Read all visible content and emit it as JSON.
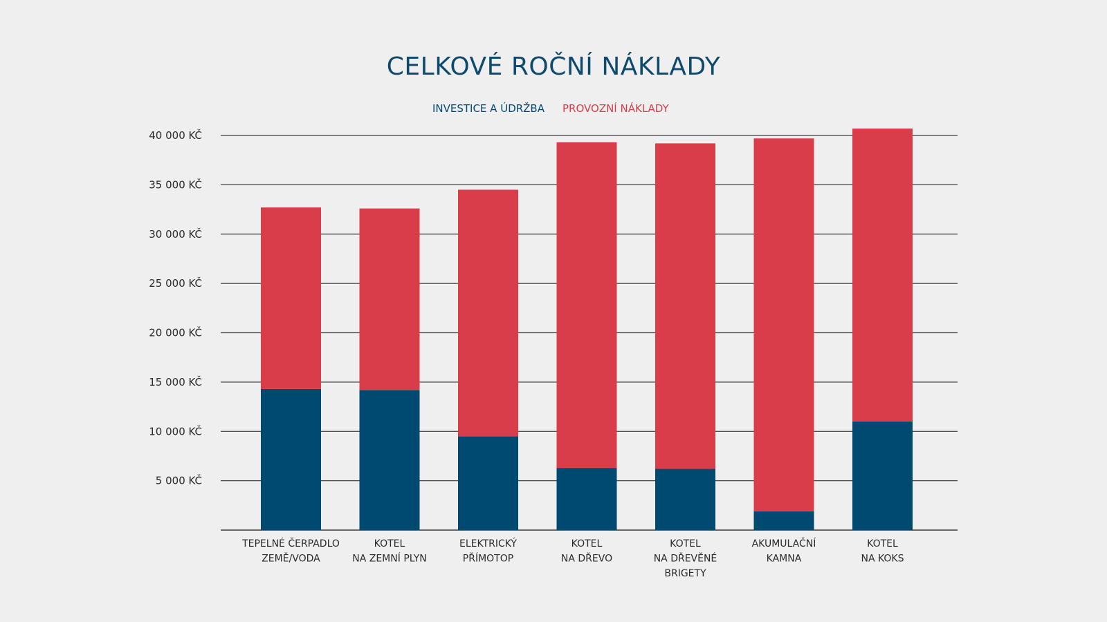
{
  "chart_data": {
    "type": "bar",
    "stacked": true,
    "title": "CELKOVÉ ROČNÍ NÁKLADY",
    "categories": [
      [
        "TEPELNÉ ČERPADLO",
        "ZEMĚ/VODA"
      ],
      [
        "KOTEL",
        "NA ZEMNÍ PLYN"
      ],
      [
        "ELEKTRICKÝ",
        "PŘÍMOTOP"
      ],
      [
        "KOTEL",
        "NA DŘEVO"
      ],
      [
        "KOTEL",
        "NA DŘEVĚNÉ",
        "BRIGETY"
      ],
      [
        "AKUMULAČNÍ",
        "KAMNA"
      ],
      [
        "KOTEL",
        "NA KOKS"
      ]
    ],
    "series": [
      {
        "name": "INVESTICE A ÚDRŽBA",
        "color": "#004a72",
        "values": [
          14300,
          14200,
          9500,
          6300,
          6200,
          1900,
          11000
        ]
      },
      {
        "name": "PROVOZNÍ NÁKLADY",
        "color": "#d93d4a",
        "values": [
          18400,
          18400,
          25000,
          33000,
          33000,
          37800,
          29700
        ]
      }
    ],
    "yticks": [
      {
        "value": 5000,
        "label": "5 000 KČ"
      },
      {
        "value": 10000,
        "label": "10 000 KČ"
      },
      {
        "value": 15000,
        "label": "15 000 KČ"
      },
      {
        "value": 20000,
        "label": "20 000 KČ"
      },
      {
        "value": 25000,
        "label": "25 000 KČ"
      },
      {
        "value": 30000,
        "label": "30 000 KČ"
      },
      {
        "value": 35000,
        "label": "35 000 KČ"
      },
      {
        "value": 40000,
        "label": "40 000 KČ"
      }
    ],
    "ylim": [
      0,
      40000
    ],
    "grid": true,
    "legend_position": "top-center",
    "colors": {
      "background": "#efefef",
      "title": "#0f4a6e",
      "gridline": "#3a3a3a"
    }
  }
}
